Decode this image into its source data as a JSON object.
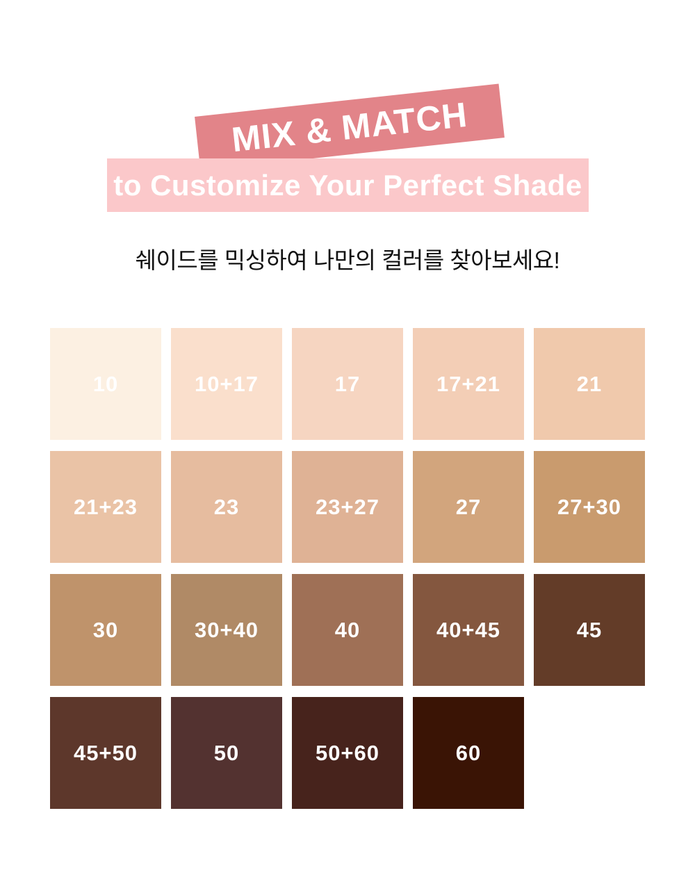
{
  "page": {
    "background_color": "#FFFFFF"
  },
  "header": {
    "title": "MIX & MATCH",
    "title_banner_color": "#E28489",
    "subtitle": "to Customize Your Perfect Shade",
    "subtitle_banner_color": "#FBC8CA",
    "banner_text_color": "#FFFFFF",
    "caption_ko": "쉐이드를 믹싱하여 나만의 컬러를 찾아보세요!",
    "caption_color": "#111111"
  },
  "shade_grid": {
    "label_text_color": "#FFFFFF",
    "shades": [
      {
        "label": "10",
        "color": "#FCF0E2"
      },
      {
        "label": "10+17",
        "color": "#FADFCC"
      },
      {
        "label": "17",
        "color": "#F6D5C1"
      },
      {
        "label": "17+21",
        "color": "#F3CEB6"
      },
      {
        "label": "21",
        "color": "#F0C9AC"
      },
      {
        "label": "21+23",
        "color": "#EAC3A6"
      },
      {
        "label": "23",
        "color": "#E6BC9F"
      },
      {
        "label": "23+27",
        "color": "#DFB295"
      },
      {
        "label": "27",
        "color": "#D2A57D"
      },
      {
        "label": "27+30",
        "color": "#C99B6E"
      },
      {
        "label": "30",
        "color": "#BF936B"
      },
      {
        "label": "30+40",
        "color": "#B08A66"
      },
      {
        "label": "40",
        "color": "#9F7056"
      },
      {
        "label": "40+45",
        "color": "#84573F"
      },
      {
        "label": "45",
        "color": "#633C28"
      },
      {
        "label": "45+50",
        "color": "#5D372B"
      },
      {
        "label": "50",
        "color": "#533230"
      },
      {
        "label": "50+60",
        "color": "#47231C"
      },
      {
        "label": "60",
        "color": "#3A1405"
      }
    ]
  }
}
